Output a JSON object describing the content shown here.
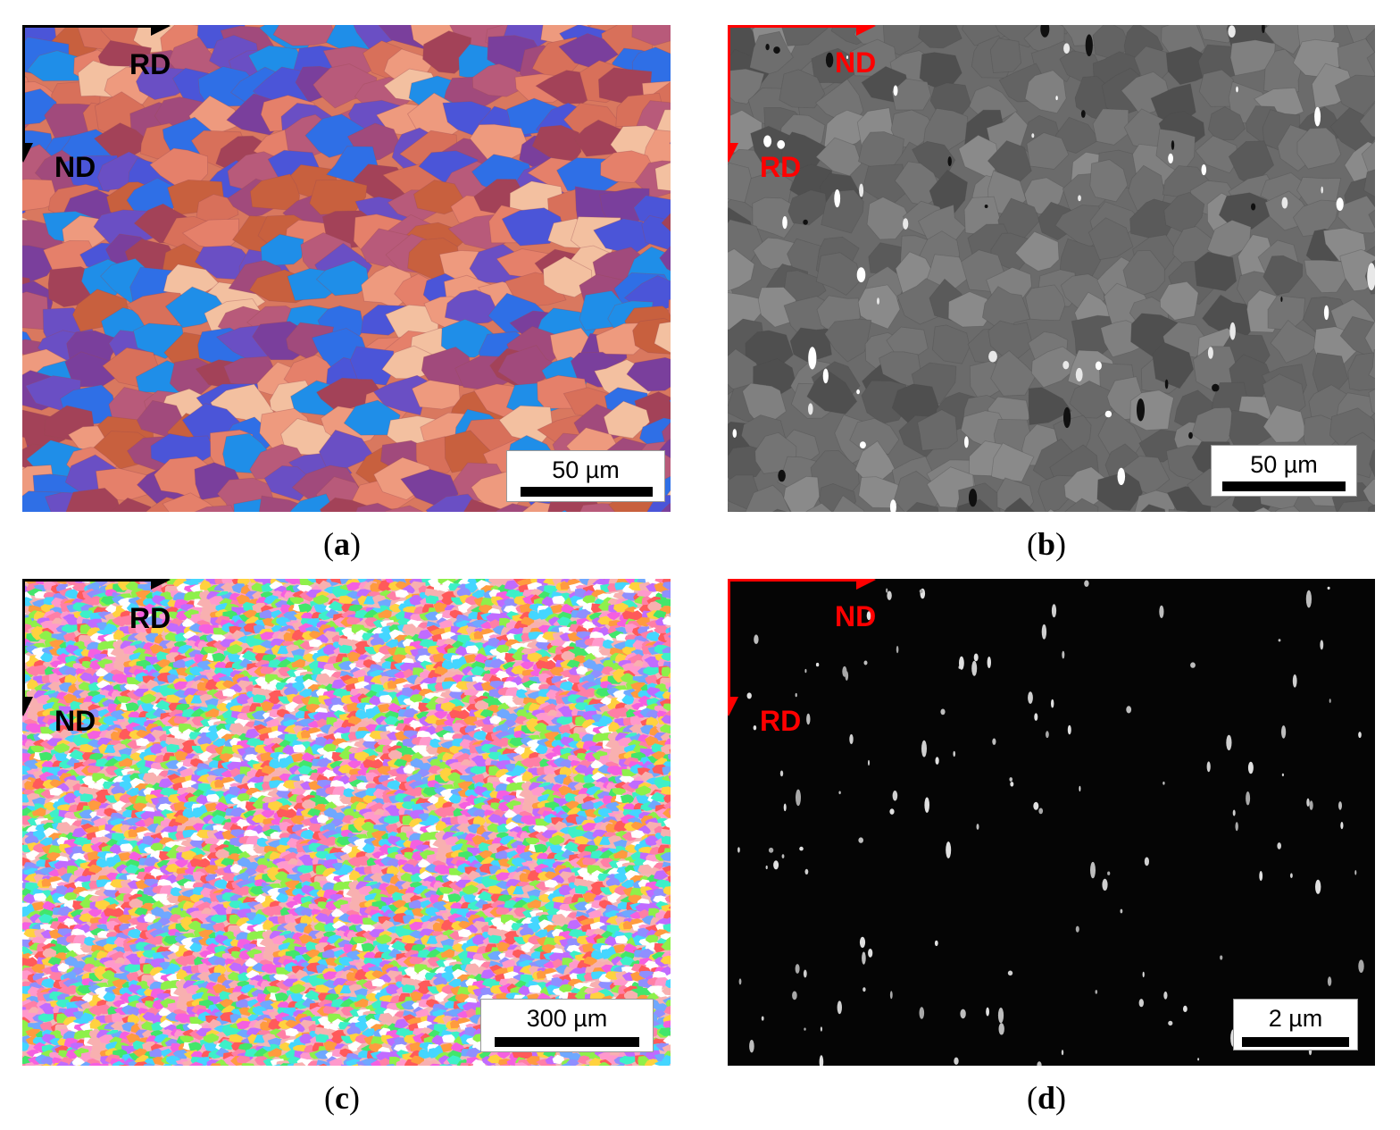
{
  "panels": {
    "a": {
      "caption_open": "(",
      "caption_letter": "a",
      "caption_close": ")",
      "axis_h_label": "RD",
      "axis_v_label": "ND",
      "scale_bar": "50 µm",
      "axis_color": "#000000",
      "palette": [
        "#e5806a",
        "#d8705a",
        "#c8603e",
        "#ee9a7e",
        "#a14a7c",
        "#7a3f9c",
        "#6a4fc4",
        "#4b55d8",
        "#2f6fe6",
        "#1f8ee8",
        "#b85a7a",
        "#f3c0a0",
        "#a34258"
      ]
    },
    "b": {
      "caption_open": "(",
      "caption_letter": "b",
      "caption_close": ")",
      "axis_h_label": "ND",
      "axis_v_label": "RD",
      "scale_bar": "50 µm",
      "axis_color": "#ff0000",
      "palette": [
        "#5a5a5a",
        "#636363",
        "#6e6e6e",
        "#777777",
        "#808080",
        "#4f4f4f",
        "#8a8a8a",
        "#696969",
        "#747474"
      ]
    },
    "c": {
      "caption_open": "(",
      "caption_letter": "c",
      "caption_close": ")",
      "axis_h_label": "RD",
      "axis_v_label": "ND",
      "scale_bar": "300 µm",
      "axis_color": "#000000",
      "palette": [
        "#ff5a5a",
        "#ff7fa6",
        "#ff99cc",
        "#f55fe0",
        "#c06bff",
        "#8f8fff",
        "#6fa8ff",
        "#44d6ff",
        "#3df0c8",
        "#42e66b",
        "#8ef04a",
        "#ffd23f",
        "#ff9b3f",
        "#ffffff",
        "#f8b0b0"
      ]
    },
    "d": {
      "caption_open": "(",
      "caption_letter": "d",
      "caption_close": ")",
      "axis_h_label": "ND",
      "axis_v_label": "RD",
      "scale_bar": "2 µm",
      "axis_color": "#ff0000",
      "palette": [
        "#cfcfcf",
        "#bdbdbd",
        "#e0e0e0",
        "#a8a8a8"
      ]
    }
  }
}
